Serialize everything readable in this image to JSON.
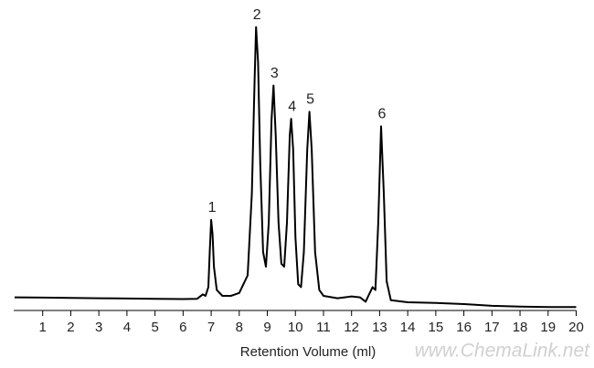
{
  "chart_data": {
    "type": "line",
    "x_label": "Retention Volume (ml)",
    "watermark": "www.ChemaLink.net",
    "color": "#000000",
    "xlim": [
      0,
      20
    ],
    "ylim": [
      0,
      100
    ],
    "xticks": [
      1,
      2,
      3,
      4,
      5,
      6,
      7,
      8,
      9,
      10,
      11,
      12,
      13,
      14,
      15,
      16,
      17,
      18,
      19,
      20
    ],
    "x": [
      0,
      1,
      2,
      3,
      4,
      5,
      6,
      6.5,
      6.7,
      6.8,
      6.9,
      6.95,
      7.0,
      7.05,
      7.1,
      7.2,
      7.4,
      7.7,
      8.0,
      8.3,
      8.45,
      8.55,
      8.6,
      8.67,
      8.75,
      8.85,
      8.95,
      9.05,
      9.15,
      9.22,
      9.3,
      9.4,
      9.5,
      9.6,
      9.7,
      9.8,
      9.85,
      9.92,
      10.0,
      10.1,
      10.2,
      10.3,
      10.42,
      10.5,
      10.58,
      10.7,
      10.85,
      11.0,
      11.5,
      12.0,
      12.3,
      12.5,
      12.6,
      12.75,
      12.85,
      12.95,
      13.05,
      13.15,
      13.25,
      13.4,
      14,
      15,
      16,
      17,
      18,
      19,
      20
    ],
    "y": [
      4.5,
      4.4,
      4.3,
      4.2,
      4.1,
      4.0,
      3.9,
      4.0,
      5.5,
      5.0,
      8,
      20,
      31,
      26,
      15,
      7,
      5,
      5,
      6,
      12,
      40,
      80,
      97,
      85,
      50,
      20,
      15,
      30,
      65,
      77,
      60,
      30,
      16,
      15,
      30,
      60,
      65.6,
      55,
      25,
      9,
      8,
      20,
      55,
      68,
      55,
      20,
      7,
      5,
      4.2,
      4.8,
      4.5,
      3,
      5,
      8,
      7,
      30,
      63,
      40,
      10,
      3.5,
      2.8,
      2.6,
      2.2,
      1.6,
      1.3,
      1.2,
      1.2
    ],
    "annotations": [
      {
        "text": "1",
        "x": 7.0,
        "y": 31
      },
      {
        "text": "2",
        "x": 8.6,
        "y": 97
      },
      {
        "text": "3",
        "x": 9.22,
        "y": 77
      },
      {
        "text": "4",
        "x": 9.85,
        "y": 65.6
      },
      {
        "text": "5",
        "x": 10.5,
        "y": 68
      },
      {
        "text": "6",
        "x": 13.05,
        "y": 63
      }
    ]
  }
}
